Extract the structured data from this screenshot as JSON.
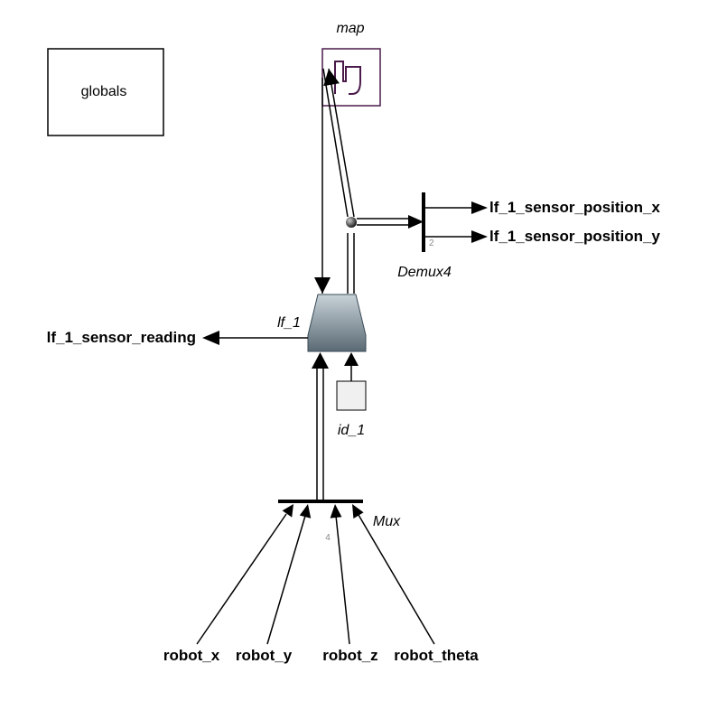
{
  "globals_block": {
    "label": "globals"
  },
  "map_block": {
    "label": "map"
  },
  "demux_block": {
    "label": "Demux4",
    "port_count": "2"
  },
  "lf_block": {
    "label": "lf_1"
  },
  "id_block": {
    "label": "id_1"
  },
  "mux_block": {
    "label": "Mux",
    "port_count": "4"
  },
  "outputs": {
    "sensor_position_x": "lf_1_sensor_position_x",
    "sensor_position_y": "lf_1_sensor_position_y",
    "sensor_reading": "lf_1_sensor_reading"
  },
  "inputs": {
    "robot_x": "robot_x",
    "robot_y": "robot_y",
    "robot_z": "robot_z",
    "robot_theta": "robot_theta"
  },
  "colors": {
    "map_border": "#4a1a4a",
    "lf_fill_top": "#c8d2d8",
    "lf_fill_bottom": "#5a6a74"
  }
}
